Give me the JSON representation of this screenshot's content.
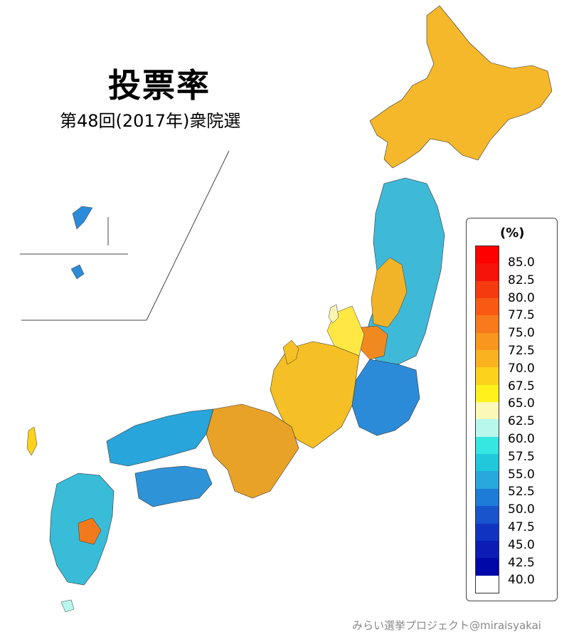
{
  "title": "投票率",
  "subtitle": "第48回(2017年)衆院選",
  "legend": {
    "unit": "(%)",
    "labels": [
      "85.0",
      "82.5",
      "80.0",
      "77.5",
      "75.0",
      "72.5",
      "70.0",
      "67.5",
      "65.0",
      "62.5",
      "60.0",
      "57.5",
      "55.0",
      "52.5",
      "50.0",
      "47.5",
      "45.0",
      "42.5",
      "40.0"
    ],
    "colors": [
      "#ff0000",
      "#f5140a",
      "#f53a10",
      "#f85a14",
      "#f87a1c",
      "#f8961e",
      "#fab21e",
      "#fcd21c",
      "#fff21c",
      "#fbf8b8",
      "#b8f8ec",
      "#36e6e0",
      "#20c8dc",
      "#28a8dc",
      "#1c7cd8",
      "#1854cc",
      "#1034c0",
      "#0c1cb4",
      "#0008a8"
    ]
  },
  "credit": "みらい選挙プロジェクト@miraisyakai"
}
